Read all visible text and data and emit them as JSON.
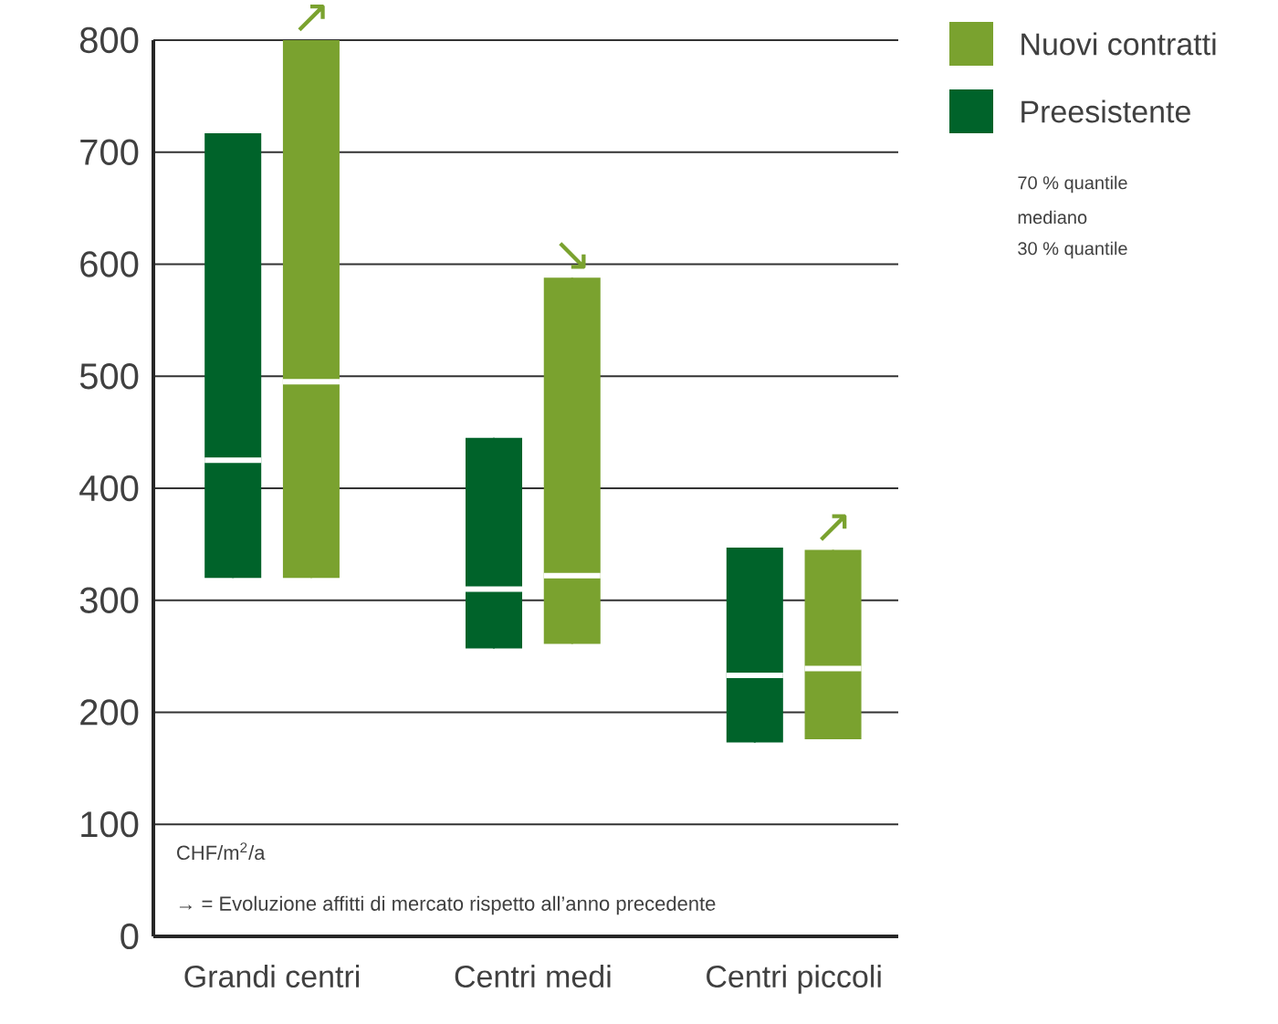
{
  "chart_data": {
    "type": "box",
    "categories": [
      "Grandi centri",
      "Centri medi",
      "Centri piccoli"
    ],
    "series": [
      {
        "name": "Preesistente",
        "color": "#00632a",
        "boxes": [
          {
            "low": 320,
            "q1": 320,
            "median": 425,
            "q3": 717,
            "high": 717
          },
          {
            "low": 257,
            "q1": 257,
            "median": 310,
            "q3": 445,
            "high": 445
          },
          {
            "low": 173,
            "q1": 173,
            "median": 233,
            "q3": 347,
            "high": 347
          }
        ]
      },
      {
        "name": "Nuovi contratti",
        "color": "#7aa22f",
        "boxes": [
          {
            "low": 320,
            "q1": 320,
            "median": 495,
            "q3": 800,
            "high": 800
          },
          {
            "low": 261,
            "q1": 261,
            "median": 322,
            "q3": 588,
            "high": 588
          },
          {
            "low": 176,
            "q1": 176,
            "median": 239,
            "q3": 345,
            "high": 345
          }
        ]
      }
    ],
    "ylabel": "CHF/m$^{2}$/a",
    "ylim": [
      0,
      800
    ],
    "yticks": [
      0,
      100,
      200,
      300,
      400,
      500,
      600,
      700,
      800
    ],
    "grid": "y",
    "legend": "top right",
    "annotations": [
      "↗",
      "↘",
      "↗",
      "70 % quantile",
      "mediano",
      "30 % quantile",
      "→ = Evoluzione affitti di mercato rispetto all’anno precedente"
    ]
  }
}
